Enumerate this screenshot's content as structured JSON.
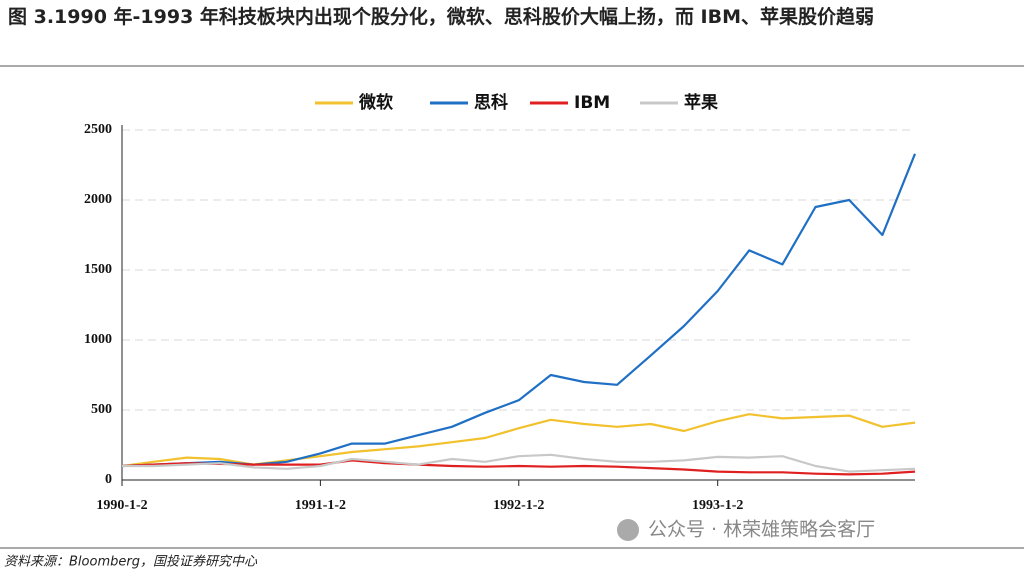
{
  "chart_data": {
    "type": "line",
    "title": "图 3.1990 年-1993 年科技板块内出现个股分化，微软、思科股价大幅上扬，而 IBM、苹果股价趋弱",
    "source": "资料来源：Bloomberg，国投证券研究中心",
    "watermark": "公众号 · 林荣雄策略会客厅",
    "x": [
      "1990-1-2",
      "1990-3-1",
      "1990-5-1",
      "1990-7-1",
      "1990-9-1",
      "1990-11-1",
      "1991-1-2",
      "1991-3-1",
      "1991-5-1",
      "1991-7-1",
      "1991-9-1",
      "1991-11-1",
      "1992-1-2",
      "1992-3-1",
      "1992-5-1",
      "1992-7-1",
      "1992-9-1",
      "1992-11-1",
      "1993-1-2",
      "1993-3-1",
      "1993-5-1",
      "1993-7-1",
      "1993-9-1",
      "1993-11-1",
      "1993-12-31"
    ],
    "xlim": [
      "1990-1-2",
      "1993-12-31"
    ],
    "xticks": [
      "1990-1-2",
      "1991-1-2",
      "1992-1-2",
      "1993-1-2"
    ],
    "ylim": [
      0,
      2500
    ],
    "yticks": [
      0,
      500,
      1000,
      1500,
      2000,
      2500
    ],
    "grid": true,
    "legend": "top",
    "series": [
      {
        "name": "微软",
        "color": "#f2c12e",
        "values": [
          100,
          130,
          160,
          150,
          110,
          140,
          170,
          200,
          220,
          240,
          270,
          300,
          370,
          430,
          400,
          380,
          400,
          350,
          420,
          470,
          440,
          450,
          460,
          380,
          410
        ]
      },
      {
        "name": "思科",
        "color": "#1f6fc5",
        "values": [
          100,
          110,
          120,
          130,
          110,
          130,
          190,
          260,
          260,
          320,
          380,
          480,
          570,
          750,
          700,
          680,
          890,
          1100,
          1350,
          1640,
          1540,
          1950,
          2000,
          1750,
          2330
        ]
      },
      {
        "name": "IBM",
        "color": "#e02020",
        "values": [
          100,
          110,
          120,
          115,
          110,
          110,
          110,
          140,
          120,
          110,
          100,
          95,
          100,
          95,
          100,
          95,
          85,
          75,
          60,
          55,
          55,
          45,
          40,
          45,
          60
        ]
      },
      {
        "name": "苹果",
        "color": "#c8c8c8",
        "values": [
          100,
          100,
          110,
          120,
          90,
          80,
          100,
          150,
          130,
          110,
          150,
          130,
          170,
          180,
          150,
          130,
          130,
          140,
          165,
          160,
          170,
          100,
          60,
          70,
          80
        ]
      }
    ]
  }
}
